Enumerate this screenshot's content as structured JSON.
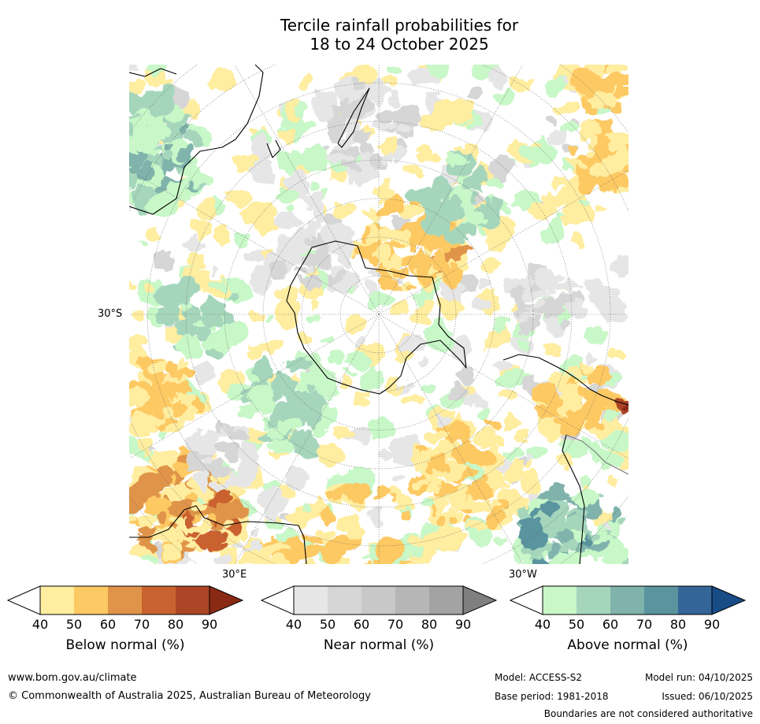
{
  "title": {
    "line1": "Tercile rainfall probabilities for",
    "line2": "18 to 24 October 2025"
  },
  "map": {
    "projection": "south-polar stereographic",
    "lat_label": "30°S",
    "lon_label_east": "30°E",
    "lon_label_west": "30°W",
    "colors": {
      "below": [
        "#ffeda0",
        "#fdc964",
        "#e0944a",
        "#c9622f",
        "#ac4525",
        "#8b2a14"
      ],
      "near": [
        "#e6e6e6",
        "#d6d6d6",
        "#c8c8c8",
        "#b6b6b6",
        "#a3a3a3",
        "#7f7f7f"
      ],
      "above": [
        "#c8f7c8",
        "#a5d6bc",
        "#7fb3ab",
        "#5a949f",
        "#346598",
        "#184c86"
      ]
    }
  },
  "legends": [
    {
      "id": "below",
      "title": "Below normal (%)",
      "ticks": [
        "40",
        "50",
        "60",
        "70",
        "80",
        "90"
      ]
    },
    {
      "id": "near",
      "title": "Near normal (%)",
      "ticks": [
        "40",
        "50",
        "60",
        "70",
        "80",
        "90"
      ]
    },
    {
      "id": "above",
      "title": "Above normal (%)",
      "ticks": [
        "40",
        "50",
        "60",
        "70",
        "80",
        "90"
      ]
    }
  ],
  "footer": {
    "url": "www.bom.gov.au/climate",
    "copyright": "© Commonwealth of Australia 2025, Australian Bureau of Meteorology",
    "model": "Model: ACCESS-S2",
    "model_run": "Model run: 04/10/2025",
    "base_period": "Base period: 1981-2018",
    "issued": "Issued: 06/10/2025",
    "disclaimer": "Boundaries are not considered authoritative"
  }
}
